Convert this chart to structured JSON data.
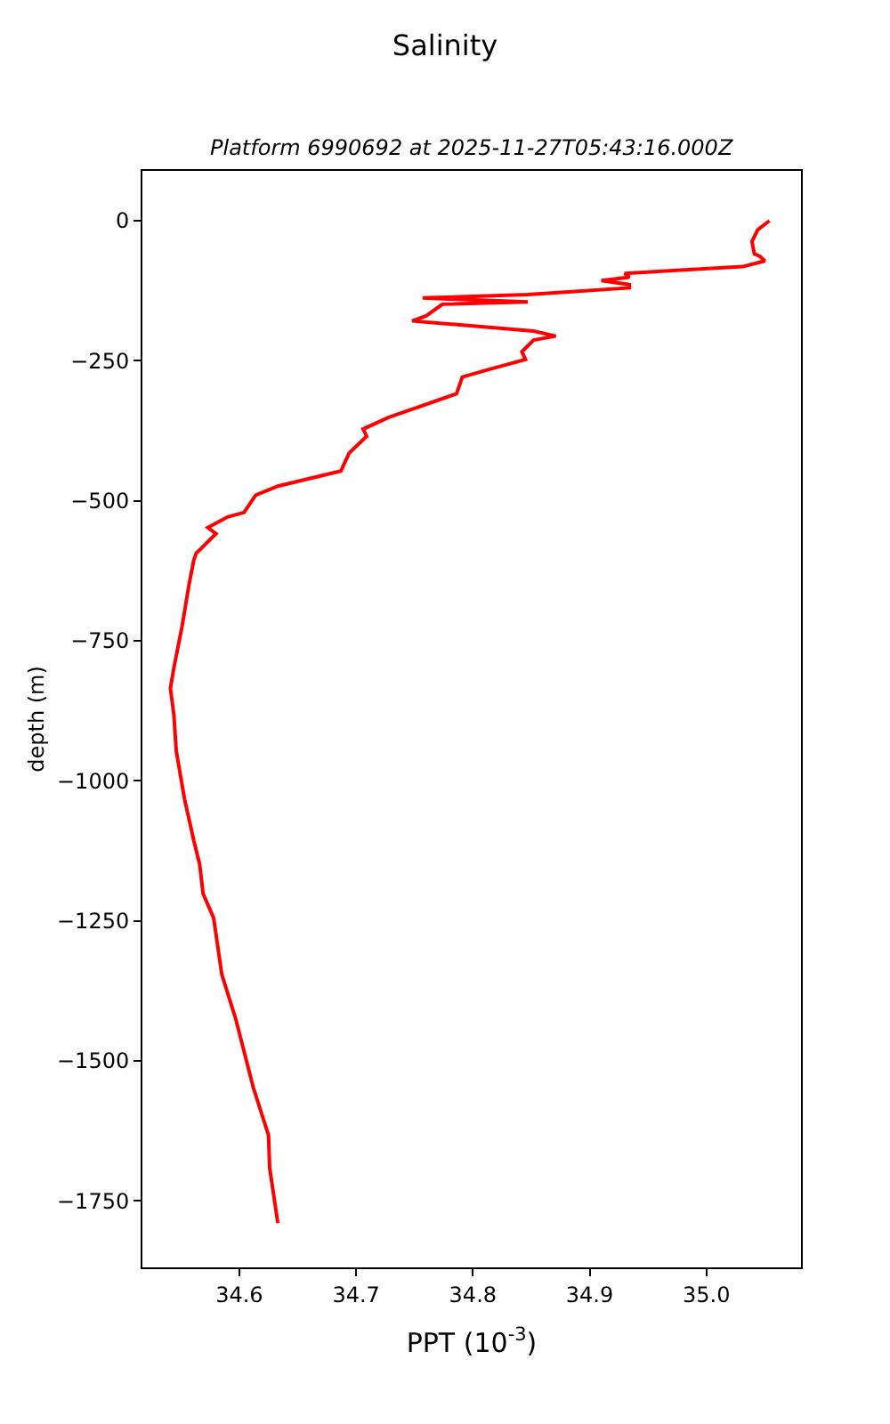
{
  "chart_data": {
    "type": "line",
    "title": "Salinity",
    "subtitle": "Platform 6990692 at 2025-11-27T05:43:16.000Z",
    "xlabel": "PPT (10$^{-3}$)",
    "ylabel": "depth (m)",
    "series": [
      {
        "color": "#ff0000",
        "x": [
          35.054,
          35.044,
          35.039,
          35.041,
          35.046,
          35.05,
          35.031,
          34.978,
          34.93,
          34.934,
          34.91,
          34.934,
          34.934,
          34.847,
          34.757,
          34.847,
          34.774,
          34.76,
          34.748,
          34.852,
          34.871,
          34.852,
          34.842,
          34.845,
          34.813,
          34.791,
          34.786,
          34.764,
          34.75,
          34.728,
          34.706,
          34.709,
          34.694,
          34.687,
          34.633,
          34.614,
          34.604,
          34.59,
          34.573,
          34.58,
          34.563,
          34.561,
          34.557,
          34.551,
          34.544,
          34.541,
          34.544,
          34.546,
          34.553,
          34.561,
          34.566,
          34.569,
          34.578,
          34.585,
          34.597,
          34.612,
          34.625,
          34.626,
          34.633
        ],
        "values": [
          0,
          -16,
          -37,
          -59,
          -64,
          -72,
          -82,
          -88,
          -94,
          -101,
          -107,
          -114,
          -120,
          -132,
          -138,
          -145,
          -149,
          -170,
          -179,
          -197,
          -206,
          -213,
          -234,
          -248,
          -266,
          -279,
          -309,
          -325,
          -335,
          -351,
          -372,
          -385,
          -415,
          -447,
          -474,
          -490,
          -521,
          -529,
          -548,
          -559,
          -594,
          -606,
          -649,
          -724,
          -798,
          -835,
          -883,
          -947,
          -1032,
          -1107,
          -1149,
          -1202,
          -1245,
          -1346,
          -1426,
          -1548,
          -1633,
          -1692,
          -1790
        ]
      }
    ],
    "xlim": [
      34.517,
      35.081
    ],
    "xticks": [
      {
        "value": 34.6,
        "label": "34.6"
      },
      {
        "value": 34.7,
        "label": "34.7"
      },
      {
        "value": 34.8,
        "label": "34.8"
      },
      {
        "value": 34.9,
        "label": "34.9"
      },
      {
        "value": 35.0,
        "label": "35.0"
      }
    ],
    "ylim": [
      -1869,
      89
    ],
    "yticks": [
      {
        "value": 0,
        "label": "0"
      },
      {
        "value": -250,
        "label": "−250"
      },
      {
        "value": -500,
        "label": "−500"
      },
      {
        "value": -750,
        "label": "−750"
      },
      {
        "value": -1000,
        "label": "−1000"
      },
      {
        "value": -1250,
        "label": "−1250"
      },
      {
        "value": -1500,
        "label": "−1500"
      },
      {
        "value": -1750,
        "label": "−1750"
      }
    ],
    "line_style": "solid"
  }
}
